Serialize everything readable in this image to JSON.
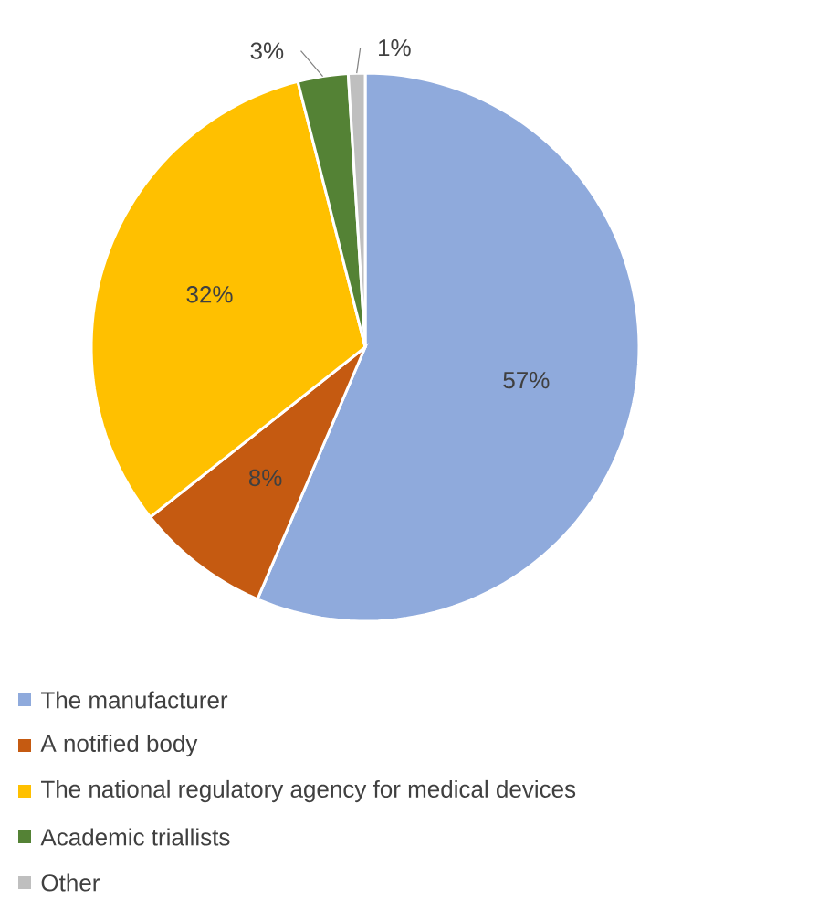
{
  "chart_data": {
    "type": "pie",
    "categories": [
      "The manufacturer",
      "A notified body",
      "The national regulatory agency for medical devices",
      "Academic triallists",
      "Other"
    ],
    "values": [
      57,
      8,
      32,
      3,
      1
    ],
    "colors": [
      "#8faadc",
      "#c55a11",
      "#ffc000",
      "#548235",
      "#bfbfbf"
    ],
    "value_labels": [
      "57%",
      "8%",
      "32%",
      "3%",
      "1%"
    ],
    "legend": "bottom"
  }
}
